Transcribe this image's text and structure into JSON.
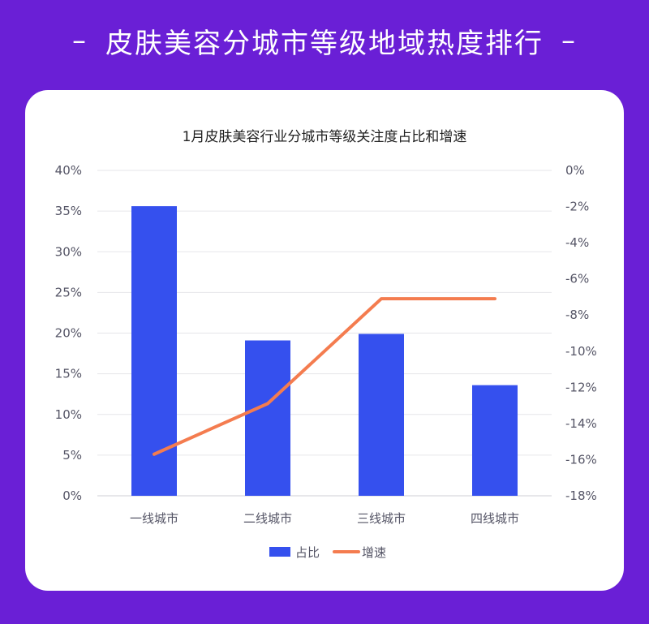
{
  "banner": {
    "title": "皮肤美容分城市等级地域热度排行",
    "dash_left": "–",
    "dash_right": "–"
  },
  "colors": {
    "background": "#6a1fd6",
    "bar": "#3550ee",
    "line": "#f47c4f"
  },
  "chart_data": {
    "type": "bar",
    "title": "1月皮肤美容行业分城市等级关注度占比和增速",
    "categories": [
      "一线城市",
      "二线城市",
      "三线城市",
      "四线城市"
    ],
    "series": [
      {
        "name": "占比",
        "type": "bar",
        "axis": "left",
        "values": [
          35.6,
          19.1,
          19.9,
          13.6
        ]
      },
      {
        "name": "增速",
        "type": "line",
        "axis": "right",
        "values": [
          -15.7,
          -12.9,
          -7.1,
          -7.1
        ]
      }
    ],
    "left_axis": {
      "ylim": [
        0,
        40
      ],
      "ticks": [
        "0%",
        "5%",
        "10%",
        "15%",
        "20%",
        "25%",
        "30%",
        "35%",
        "40%"
      ]
    },
    "right_axis": {
      "ylim": [
        -18,
        0
      ],
      "ticks": [
        "0%",
        "-2%",
        "-4%",
        "-6%",
        "-8%",
        "-10%",
        "-12%",
        "-14%",
        "-16%",
        "-18%"
      ]
    },
    "grid": true,
    "legend_position": "bottom"
  }
}
